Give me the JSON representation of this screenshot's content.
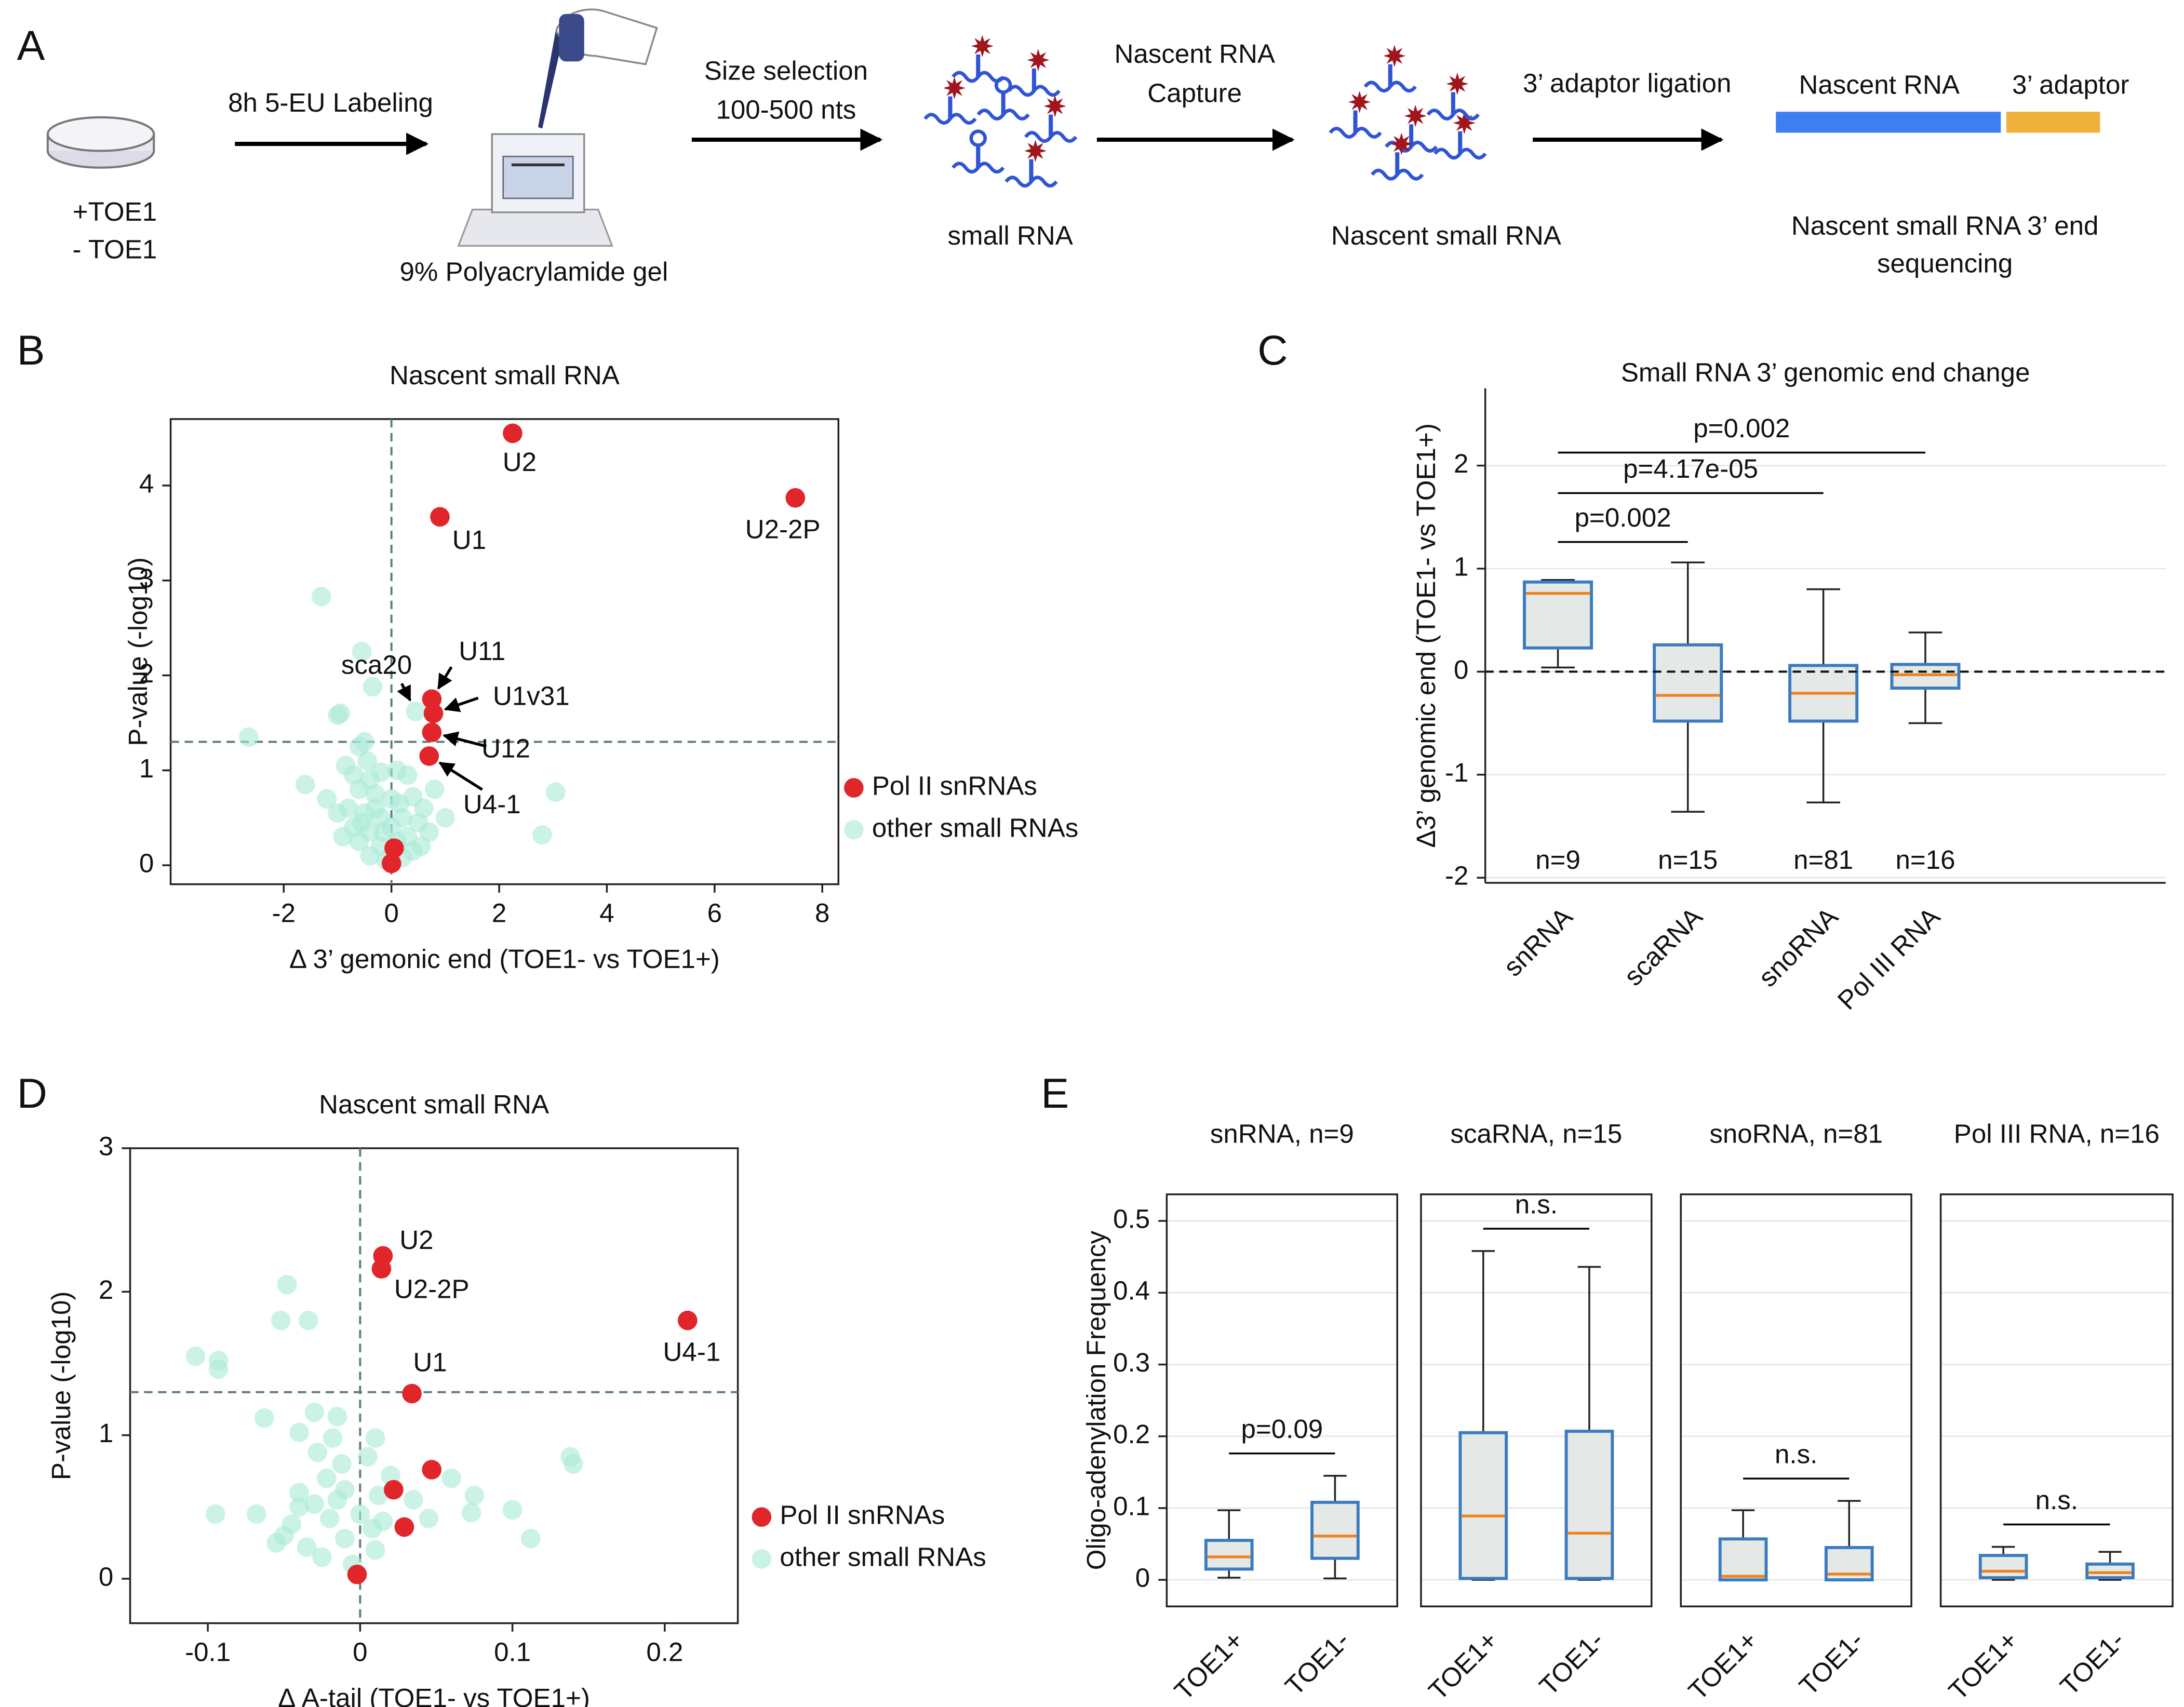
{
  "panel_labels": [
    "A",
    "B",
    "C",
    "D",
    "E"
  ],
  "schematic": {
    "conditions": [
      "+TOE1",
      "- TOE1"
    ],
    "arrow_labels": [
      [
        "8h 5-EU Labeling"
      ],
      [
        "Size selection",
        "100-500 nts"
      ],
      [
        "Nascent RNA",
        "Capture"
      ],
      [
        "3’ adaptor ligation"
      ]
    ],
    "captions": [
      [
        "9% Polyacrylamide gel"
      ],
      [
        "small RNA"
      ],
      [
        "Nascent small RNA"
      ],
      [
        "Nascent small RNA 3’ end",
        "sequencing"
      ]
    ],
    "bar_labels": [
      "Nascent RNA",
      "3’ adaptor"
    ],
    "bar_colors": [
      "#3d7ef0",
      "#f0b13a"
    ]
  },
  "chart_data": [
    {
      "type": "scatter",
      "title": "Nascent small RNA",
      "x_label": "Δ 3’ gemonic end (TOE1- vs TOE1+)",
      "y_label": "P-value (-log10)",
      "xlim": [
        -4.1,
        8.3
      ],
      "ylim": [
        -0.2,
        4.7
      ],
      "xticks": [
        -2,
        0,
        2,
        4,
        6,
        8
      ],
      "yticks": [
        0,
        1,
        2,
        3,
        4
      ],
      "ref_x": 0,
      "ref_y": 1.3,
      "series": [
        {
          "name": "Pol II snRNAs",
          "color": "#e0262b",
          "x": [
            2.25,
            7.5,
            0.9,
            0.75,
            0.78,
            0.75,
            0.7,
            0.05,
            0.0
          ],
          "values": [
            4.55,
            3.87,
            3.67,
            1.75,
            1.6,
            1.4,
            1.15,
            0.18,
            0.02
          ],
          "point_labels": [
            "U2",
            "U2-2P",
            "U1",
            "U11",
            "U1v31",
            "U12",
            "U4-1",
            null,
            null
          ]
        },
        {
          "name": "other small RNAs",
          "color": "#a8ead6",
          "x": [
            -1.3,
            -0.55,
            -0.35,
            -0.95,
            -1.0,
            -2.65,
            -0.5,
            -0.6,
            -0.45,
            -1.6,
            -0.85,
            -0.7,
            -0.4,
            -0.2,
            0.1,
            0.3,
            -0.6,
            -0.3,
            0.0,
            0.4,
            0.6,
            -1.0,
            -0.8,
            -0.5,
            -0.2,
            0.2,
            0.5,
            1.0,
            -0.7,
            -0.4,
            0.0,
            0.3,
            0.7,
            -0.9,
            -0.6,
            -0.2,
            0.1,
            0.4,
            -0.4,
            -0.1,
            0.2,
            3.05,
            2.8,
            -1.2,
            0.8,
            -0.3,
            0.15,
            -0.55,
            0.55,
            -0.15,
            0.45
          ],
          "values": [
            2.83,
            2.25,
            1.88,
            1.6,
            1.58,
            1.35,
            1.3,
            1.25,
            1.1,
            0.85,
            1.05,
            0.95,
            0.9,
            0.98,
            1.0,
            0.95,
            0.8,
            0.75,
            0.7,
            0.72,
            0.6,
            0.55,
            0.6,
            0.55,
            0.5,
            0.5,
            0.45,
            0.5,
            0.4,
            0.35,
            0.4,
            0.3,
            0.35,
            0.3,
            0.25,
            0.2,
            0.25,
            0.15,
            0.1,
            0.05,
            0.08,
            0.77,
            0.32,
            0.7,
            0.8,
            0.6,
            0.65,
            0.45,
            0.2,
            0.35,
            1.62
          ],
          "point_labels": [
            null,
            null,
            null,
            null,
            null,
            null,
            null,
            null,
            null,
            null,
            null,
            null,
            null,
            null,
            null,
            null,
            null,
            null,
            null,
            null,
            null,
            null,
            null,
            null,
            null,
            null,
            null,
            null,
            null,
            null,
            null,
            null,
            null,
            null,
            null,
            null,
            null,
            null,
            null,
            null,
            null,
            null,
            null,
            null,
            null,
            null,
            null,
            null,
            null,
            null,
            "sca20"
          ]
        }
      ]
    },
    {
      "type": "box",
      "title": "Small RNA 3’ genomic end change",
      "y_label": "Δ3’ genomic end (TOE1- vs TOE1+)",
      "ylim": [
        -2.05,
        2.75
      ],
      "yticks": [
        -2,
        -1,
        0,
        1,
        2
      ],
      "ref_y": 0,
      "box_color": "#e4e9e7",
      "edge_color": "#3b7bbf",
      "median_color": "#f0821e",
      "categories": [
        "snRNA",
        "scaRNA",
        "snoRNA",
        "Pol III RNA"
      ],
      "n_labels": [
        "n=9",
        "n=15",
        "n=81",
        "n=16"
      ],
      "boxes": [
        {
          "whislo": 0.04,
          "q1": 0.23,
          "med": 0.76,
          "q3": 0.87,
          "whishi": 0.89
        },
        {
          "whislo": -1.36,
          "q1": -0.48,
          "med": -0.23,
          "q3": 0.26,
          "whishi": 1.06
        },
        {
          "whislo": -1.27,
          "q1": -0.48,
          "med": -0.21,
          "q3": 0.06,
          "whishi": 0.8
        },
        {
          "whislo": -0.5,
          "q1": -0.16,
          "med": -0.03,
          "q3": 0.07,
          "whishi": 0.38
        }
      ],
      "brackets": [
        {
          "from": 0,
          "to": 1,
          "label": "p=0.002"
        },
        {
          "from": 0,
          "to": 2,
          "label": "p=4.17e-05"
        },
        {
          "from": 0,
          "to": 3,
          "label": "p=0.002"
        }
      ]
    },
    {
      "type": "scatter",
      "title": "Nascent small RNA",
      "x_label": "Δ A-tail (TOE1- vs TOE1+)",
      "y_label": "P-value (-log10)",
      "xlim": [
        -0.151,
        0.248
      ],
      "ylim": [
        -0.31,
        3.0
      ],
      "xticks": [
        -0.1,
        0,
        0.1,
        0.2
      ],
      "yticks": [
        0,
        1,
        2,
        3
      ],
      "ref_x": 0,
      "ref_y": 1.3,
      "series": [
        {
          "name": "Pol II snRNAs",
          "color": "#e0262b",
          "x": [
            0.015,
            0.014,
            0.034,
            0.215,
            0.047,
            0.022,
            0.029,
            -0.002
          ],
          "values": [
            2.25,
            2.16,
            1.29,
            1.8,
            0.76,
            0.62,
            0.36,
            0.03
          ],
          "point_labels": [
            "U2",
            "U2-2P",
            "U1",
            "U4-1",
            null,
            null,
            null,
            null
          ]
        },
        {
          "name": "other small RNAs",
          "color": "#a8ead6",
          "x": [
            -0.048,
            -0.052,
            -0.034,
            -0.108,
            -0.093,
            -0.093,
            -0.063,
            -0.03,
            -0.015,
            -0.04,
            -0.018,
            0.01,
            -0.028,
            -0.012,
            0.005,
            -0.022,
            -0.04,
            -0.01,
            0.012,
            -0.03,
            -0.095,
            -0.068,
            -0.045,
            -0.02,
            0.0,
            0.015,
            -0.05,
            -0.035,
            -0.01,
            0.01,
            -0.025,
            -0.005,
            0.008,
            -0.04,
            0.075,
            0.073,
            0.1,
            0.112,
            0.045,
            0.035,
            0.138,
            0.14,
            0.06,
            0.02,
            -0.055,
            -0.015
          ],
          "values": [
            2.05,
            1.8,
            1.8,
            1.55,
            1.52,
            1.46,
            1.12,
            1.16,
            1.13,
            1.02,
            0.98,
            0.98,
            0.88,
            0.8,
            0.85,
            0.7,
            0.6,
            0.62,
            0.58,
            0.52,
            0.45,
            0.45,
            0.38,
            0.42,
            0.45,
            0.4,
            0.3,
            0.22,
            0.28,
            0.2,
            0.15,
            0.1,
            0.35,
            0.5,
            0.58,
            0.46,
            0.48,
            0.28,
            0.42,
            0.55,
            0.85,
            0.8,
            0.7,
            0.72,
            0.25,
            0.55
          ],
          "point_labels": [
            null,
            null,
            null,
            null,
            null,
            null,
            null,
            null,
            null,
            null,
            null,
            null,
            null,
            null,
            null,
            null,
            null,
            null,
            null,
            null,
            null,
            null,
            null,
            null,
            null,
            null,
            null,
            null,
            null,
            null,
            null,
            null,
            null,
            null,
            null,
            null,
            null,
            null,
            null,
            null,
            null,
            null,
            null,
            null,
            null,
            null
          ]
        }
      ]
    },
    {
      "type": "box",
      "y_label": "Oligo-adenylation Frequency",
      "ylim": [
        -0.037,
        0.537
      ],
      "yticks": [
        0,
        0.1,
        0.2,
        0.3,
        0.4,
        0.5
      ],
      "box_color": "#e4e9e7",
      "edge_color": "#3b7bbf",
      "median_color": "#f0821e",
      "panels": [
        {
          "title": "snRNA, n=9",
          "categories": [
            "TOE1+",
            "TOE1-"
          ],
          "boxes": [
            {
              "whislo": 0.003,
              "q1": 0.015,
              "med": 0.032,
              "q3": 0.055,
              "whishi": 0.097
            },
            {
              "whislo": 0.002,
              "q1": 0.03,
              "med": 0.061,
              "q3": 0.108,
              "whishi": 0.145
            }
          ],
          "brackets": [
            {
              "from": 0,
              "to": 1,
              "label": "p=0.09"
            }
          ]
        },
        {
          "title": "scaRNA, n=15",
          "categories": [
            "TOE1+",
            "TOE1-"
          ],
          "boxes": [
            {
              "whislo": 0,
              "q1": 0.002,
              "med": 0.089,
              "q3": 0.205,
              "whishi": 0.458
            },
            {
              "whislo": 0,
              "q1": 0.002,
              "med": 0.065,
              "q3": 0.207,
              "whishi": 0.436
            }
          ],
          "brackets": [
            {
              "from": 0,
              "to": 1,
              "label": "n.s."
            }
          ]
        },
        {
          "title": "snoRNA, n=81",
          "categories": [
            "TOE1+",
            "TOE1-"
          ],
          "boxes": [
            {
              "whislo": 0,
              "q1": 0,
              "med": 0.005,
              "q3": 0.057,
              "whishi": 0.097
            },
            {
              "whislo": 0,
              "q1": 0,
              "med": 0.008,
              "q3": 0.045,
              "whishi": 0.11
            }
          ],
          "brackets": [
            {
              "from": 0,
              "to": 1,
              "label": "n.s."
            }
          ]
        },
        {
          "title": "Pol III RNA, n=16",
          "categories": [
            "TOE1+",
            "TOE1-"
          ],
          "boxes": [
            {
              "whislo": 0,
              "q1": 0.003,
              "med": 0.012,
              "q3": 0.034,
              "whishi": 0.046
            },
            {
              "whislo": 0,
              "q1": 0.003,
              "med": 0.01,
              "q3": 0.022,
              "whishi": 0.039
            }
          ],
          "brackets": [
            {
              "from": 0,
              "to": 1,
              "label": "n.s."
            }
          ]
        }
      ]
    }
  ]
}
